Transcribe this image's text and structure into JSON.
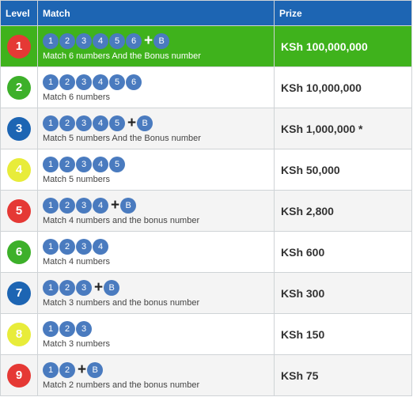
{
  "header": {
    "level": "Level",
    "match": "Match",
    "prize": "Prize"
  },
  "colors": {
    "header_bg": "#1d65b3",
    "highlight_row": "#3fb21c",
    "ball": "#4a7bbf",
    "level_red": "#e53935",
    "level_green": "#3db02a",
    "level_blue": "#1d65b3",
    "level_yellow": "#e8ec3a"
  },
  "rows": [
    {
      "level": "1",
      "color": "#e53935",
      "balls": [
        "1",
        "2",
        "3",
        "4",
        "5",
        "6"
      ],
      "bonus": "B",
      "desc": "Match 6 numbers And the Bonus number",
      "prize": "KSh 100,000,000"
    },
    {
      "level": "2",
      "color": "#3db02a",
      "balls": [
        "1",
        "2",
        "3",
        "4",
        "5",
        "6"
      ],
      "bonus": "",
      "desc": "Match 6 numbers",
      "prize": "KSh 10,000,000"
    },
    {
      "level": "3",
      "color": "#1d65b3",
      "balls": [
        "1",
        "2",
        "3",
        "4",
        "5"
      ],
      "bonus": "B",
      "desc": "Match 5 numbers And the Bonus number",
      "prize": "KSh 1,000,000 *"
    },
    {
      "level": "4",
      "color": "#e8ec3a",
      "balls": [
        "1",
        "2",
        "3",
        "4",
        "5"
      ],
      "bonus": "",
      "desc": "Match 5 numbers",
      "prize": "KSh 50,000"
    },
    {
      "level": "5",
      "color": "#e53935",
      "balls": [
        "1",
        "2",
        "3",
        "4"
      ],
      "bonus": "B",
      "desc": "Match 4 numbers and the bonus number",
      "prize": "KSh 2,800"
    },
    {
      "level": "6",
      "color": "#3db02a",
      "balls": [
        "1",
        "2",
        "3",
        "4"
      ],
      "bonus": "",
      "desc": "Match 4 numbers",
      "prize": "KSh 600"
    },
    {
      "level": "7",
      "color": "#1d65b3",
      "balls": [
        "1",
        "2",
        "3"
      ],
      "bonus": "B",
      "desc": "Match 3 numbers and the bonus number",
      "prize": "KSh 300"
    },
    {
      "level": "8",
      "color": "#e8ec3a",
      "balls": [
        "1",
        "2",
        "3"
      ],
      "bonus": "",
      "desc": "Match 3 numbers",
      "prize": "KSh 150"
    },
    {
      "level": "9",
      "color": "#e53935",
      "balls": [
        "1",
        "2"
      ],
      "bonus": "B",
      "desc": "Match 2 numbers and the bonus number",
      "prize": "KSh 75"
    }
  ]
}
